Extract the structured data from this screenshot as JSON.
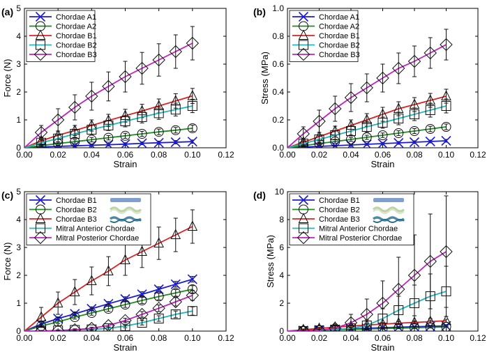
{
  "chart_data": [
    {
      "panel": "(a)",
      "type": "line",
      "xlabel": "Strain",
      "ylabel": "Force (N)",
      "xlim": [
        0,
        0.12
      ],
      "ylim": [
        0,
        5
      ],
      "xticks": [
        "0.00",
        "0.02",
        "0.04",
        "0.06",
        "0.08",
        "0.10",
        "0.12"
      ],
      "yticks": [
        "0",
        "1",
        "2",
        "3",
        "4",
        "5"
      ],
      "legend_position": "top-left",
      "x": [
        0.01,
        0.02,
        0.03,
        0.04,
        0.05,
        0.06,
        0.07,
        0.08,
        0.09,
        0.1
      ],
      "series": [
        {
          "name": "Chordae A1",
          "color": "#1a1ad6",
          "marker": "x",
          "values": [
            0.03,
            0.05,
            0.07,
            0.09,
            0.11,
            0.13,
            0.16,
            0.18,
            0.2,
            0.22
          ],
          "errors": [
            0.03,
            0.03,
            0.04,
            0.04,
            0.05,
            0.05,
            0.05,
            0.06,
            0.06,
            0.06
          ]
        },
        {
          "name": "Chordae A2",
          "color": "#1f8a1f",
          "marker": "circle",
          "values": [
            0.08,
            0.15,
            0.22,
            0.29,
            0.36,
            0.43,
            0.5,
            0.57,
            0.63,
            0.7
          ],
          "errors": [
            0.05,
            0.06,
            0.07,
            0.08,
            0.08,
            0.09,
            0.09,
            0.1,
            0.1,
            0.11
          ]
        },
        {
          "name": "Chordae B1",
          "color": "#e02020",
          "marker": "triangle",
          "values": [
            0.25,
            0.45,
            0.62,
            0.8,
            0.98,
            1.15,
            1.32,
            1.5,
            1.68,
            1.86
          ],
          "errors": [
            0.12,
            0.15,
            0.18,
            0.2,
            0.22,
            0.23,
            0.24,
            0.25,
            0.26,
            0.27
          ]
        },
        {
          "name": "Chordae B2",
          "color": "#1fb8b8",
          "marker": "square",
          "values": [
            0.18,
            0.33,
            0.5,
            0.65,
            0.8,
            0.95,
            1.1,
            1.24,
            1.37,
            1.5
          ],
          "errors": [
            0.1,
            0.12,
            0.15,
            0.17,
            0.18,
            0.2,
            0.21,
            0.22,
            0.23,
            0.24
          ]
        },
        {
          "name": "Chordae B3",
          "color": "#c020c0",
          "marker": "diamond",
          "values": [
            0.55,
            1.0,
            1.45,
            1.85,
            2.2,
            2.55,
            2.85,
            3.15,
            3.45,
            3.75
          ],
          "errors": [
            0.25,
            0.4,
            0.45,
            0.5,
            0.52,
            0.55,
            0.57,
            0.58,
            0.6,
            0.6
          ]
        }
      ]
    },
    {
      "panel": "(b)",
      "type": "line",
      "xlabel": "Strain",
      "ylabel": "Stress (MPa)",
      "xlim": [
        0,
        0.12
      ],
      "ylim": [
        0,
        1.0
      ],
      "xticks": [
        "0.00",
        "0.02",
        "0.04",
        "0.06",
        "0.08",
        "0.10",
        "0.12"
      ],
      "yticks": [
        "0.0",
        "0.2",
        "0.4",
        "0.6",
        "0.8",
        "1.0"
      ],
      "legend_position": "top-left",
      "x": [
        0.01,
        0.02,
        0.03,
        0.04,
        0.05,
        0.06,
        0.07,
        0.08,
        0.09,
        0.1
      ],
      "series": [
        {
          "name": "Chordae A1",
          "color": "#1a1ad6",
          "marker": "x",
          "values": [
            0.005,
            0.01,
            0.015,
            0.02,
            0.025,
            0.03,
            0.035,
            0.04,
            0.045,
            0.05
          ],
          "errors": [
            0.005,
            0.005,
            0.006,
            0.007,
            0.008,
            0.009,
            0.01,
            0.01,
            0.01,
            0.01
          ]
        },
        {
          "name": "Chordae A2",
          "color": "#1f8a1f",
          "marker": "circle",
          "values": [
            0.015,
            0.03,
            0.045,
            0.06,
            0.075,
            0.09,
            0.105,
            0.12,
            0.135,
            0.15
          ],
          "errors": [
            0.008,
            0.01,
            0.012,
            0.014,
            0.015,
            0.016,
            0.017,
            0.018,
            0.019,
            0.02
          ]
        },
        {
          "name": "Chordae B1",
          "color": "#e02020",
          "marker": "triangle",
          "values": [
            0.04,
            0.08,
            0.12,
            0.16,
            0.2,
            0.24,
            0.28,
            0.31,
            0.34,
            0.37
          ],
          "errors": [
            0.02,
            0.03,
            0.035,
            0.04,
            0.045,
            0.05,
            0.05,
            0.05,
            0.05,
            0.05
          ]
        },
        {
          "name": "Chordae B2",
          "color": "#1fb8b8",
          "marker": "square",
          "values": [
            0.03,
            0.06,
            0.09,
            0.12,
            0.15,
            0.18,
            0.21,
            0.24,
            0.27,
            0.3
          ],
          "errors": [
            0.02,
            0.025,
            0.03,
            0.035,
            0.04,
            0.04,
            0.045,
            0.045,
            0.05,
            0.05
          ]
        },
        {
          "name": "Chordae B3",
          "color": "#c020c0",
          "marker": "diamond",
          "values": [
            0.1,
            0.19,
            0.28,
            0.36,
            0.43,
            0.5,
            0.57,
            0.62,
            0.68,
            0.74
          ],
          "errors": [
            0.05,
            0.08,
            0.09,
            0.1,
            0.1,
            0.1,
            0.11,
            0.11,
            0.11,
            0.11
          ]
        }
      ]
    },
    {
      "panel": "(c)",
      "type": "line",
      "xlabel": "Strain",
      "ylabel": "Force (N)",
      "xlim": [
        0,
        0.12
      ],
      "ylim": [
        0,
        5
      ],
      "xticks": [
        "0.00",
        "0.02",
        "0.04",
        "0.06",
        "0.08",
        "0.10",
        "0.12"
      ],
      "yticks": [
        "0",
        "1",
        "2",
        "3",
        "4",
        "5"
      ],
      "legend_position": "top-left",
      "x": [
        0.01,
        0.02,
        0.03,
        0.04,
        0.05,
        0.06,
        0.07,
        0.08,
        0.09,
        0.1
      ],
      "series": [
        {
          "name": "Chordae B1",
          "color": "#1a1ad6",
          "marker": "x",
          "values": [
            0.25,
            0.45,
            0.62,
            0.8,
            0.98,
            1.15,
            1.32,
            1.5,
            1.68,
            1.86
          ],
          "errors": [
            0.05,
            0.06,
            0.07,
            0.07,
            0.08,
            0.08,
            0.09,
            0.09,
            0.1,
            0.1
          ]
        },
        {
          "name": "Chordae B2",
          "color": "#1f8a1f",
          "marker": "circle",
          "values": [
            0.18,
            0.33,
            0.5,
            0.65,
            0.8,
            0.95,
            1.1,
            1.24,
            1.37,
            1.5
          ],
          "errors": [
            0.05,
            0.06,
            0.07,
            0.08,
            0.09,
            0.1,
            0.11,
            0.12,
            0.12,
            0.13
          ]
        },
        {
          "name": "Chordae B3",
          "color": "#e02020",
          "marker": "triangle",
          "values": [
            0.5,
            1.0,
            1.4,
            1.8,
            2.15,
            2.55,
            2.85,
            3.15,
            3.45,
            3.75
          ],
          "errors": [
            0.35,
            0.4,
            0.45,
            0.5,
            0.52,
            0.55,
            0.57,
            0.58,
            0.6,
            0.6
          ]
        },
        {
          "name": "Mitral Anterior Chordae",
          "color": "#1fb8b8",
          "marker": "square",
          "values": [
            0.0,
            0.02,
            0.04,
            0.06,
            0.1,
            0.18,
            0.3,
            0.45,
            0.6,
            0.72
          ],
          "errors": [
            0.02,
            0.02,
            0.03,
            0.04,
            0.05,
            0.06,
            0.08,
            0.1,
            0.12,
            0.15
          ]
        },
        {
          "name": "Mitral Posterior Chordae",
          "color": "#c020c0",
          "marker": "diamond",
          "values": [
            0.0,
            0.02,
            0.05,
            0.1,
            0.2,
            0.38,
            0.6,
            0.82,
            1.05,
            1.28
          ],
          "errors": [
            0.02,
            0.02,
            0.03,
            0.04,
            0.06,
            0.08,
            0.1,
            0.12,
            0.15,
            0.18
          ]
        }
      ]
    },
    {
      "panel": "(d)",
      "type": "line",
      "xlabel": "Strain",
      "ylabel": "Stress (MPa)",
      "xlim": [
        0,
        0.12
      ],
      "ylim": [
        0,
        10
      ],
      "xticks": [
        "0.00",
        "0.02",
        "0.04",
        "0.06",
        "0.08",
        "0.10",
        "0.12"
      ],
      "yticks": [
        "0",
        "2",
        "4",
        "6",
        "8",
        "10"
      ],
      "legend_position": "top-left",
      "x": [
        0.01,
        0.02,
        0.03,
        0.04,
        0.05,
        0.06,
        0.07,
        0.08,
        0.09,
        0.1
      ],
      "series": [
        {
          "name": "Chordae B1",
          "color": "#1a1ad6",
          "marker": "x",
          "values": [
            0.04,
            0.08,
            0.12,
            0.16,
            0.2,
            0.24,
            0.28,
            0.31,
            0.34,
            0.37
          ],
          "errors": [
            0.02,
            0.02,
            0.03,
            0.03,
            0.03,
            0.04,
            0.04,
            0.04,
            0.05,
            0.05
          ]
        },
        {
          "name": "Chordae B2",
          "color": "#1f8a1f",
          "marker": "circle",
          "values": [
            0.03,
            0.06,
            0.09,
            0.12,
            0.15,
            0.18,
            0.21,
            0.24,
            0.27,
            0.3
          ],
          "errors": [
            0.02,
            0.02,
            0.03,
            0.03,
            0.04,
            0.04,
            0.04,
            0.05,
            0.05,
            0.05
          ]
        },
        {
          "name": "Chordae B3",
          "color": "#e02020",
          "marker": "triangle",
          "values": [
            0.1,
            0.19,
            0.28,
            0.36,
            0.43,
            0.5,
            0.57,
            0.62,
            0.68,
            0.74
          ],
          "errors": [
            0.05,
            0.08,
            0.09,
            0.1,
            0.1,
            0.1,
            0.11,
            0.11,
            0.11,
            0.11
          ]
        },
        {
          "name": "Mitral Anterior Chordae",
          "color": "#1fb8b8",
          "marker": "square",
          "values": [
            0.0,
            0.05,
            0.1,
            0.2,
            0.4,
            0.9,
            1.5,
            2.0,
            2.5,
            2.85
          ],
          "errors": [
            0.05,
            0.08,
            0.1,
            0.2,
            0.4,
            0.7,
            1.0,
            1.3,
            1.6,
            1.8
          ]
        },
        {
          "name": "Mitral Posterior Chordae",
          "color": "#c020c0",
          "marker": "diamond",
          "values": [
            0.0,
            0.05,
            0.2,
            0.6,
            1.2,
            2.0,
            3.0,
            4.0,
            5.0,
            5.7
          ],
          "errors": [
            0.05,
            0.1,
            0.3,
            0.6,
            1.1,
            1.6,
            2.3,
            2.9,
            3.4,
            4.0
          ]
        }
      ]
    }
  ]
}
